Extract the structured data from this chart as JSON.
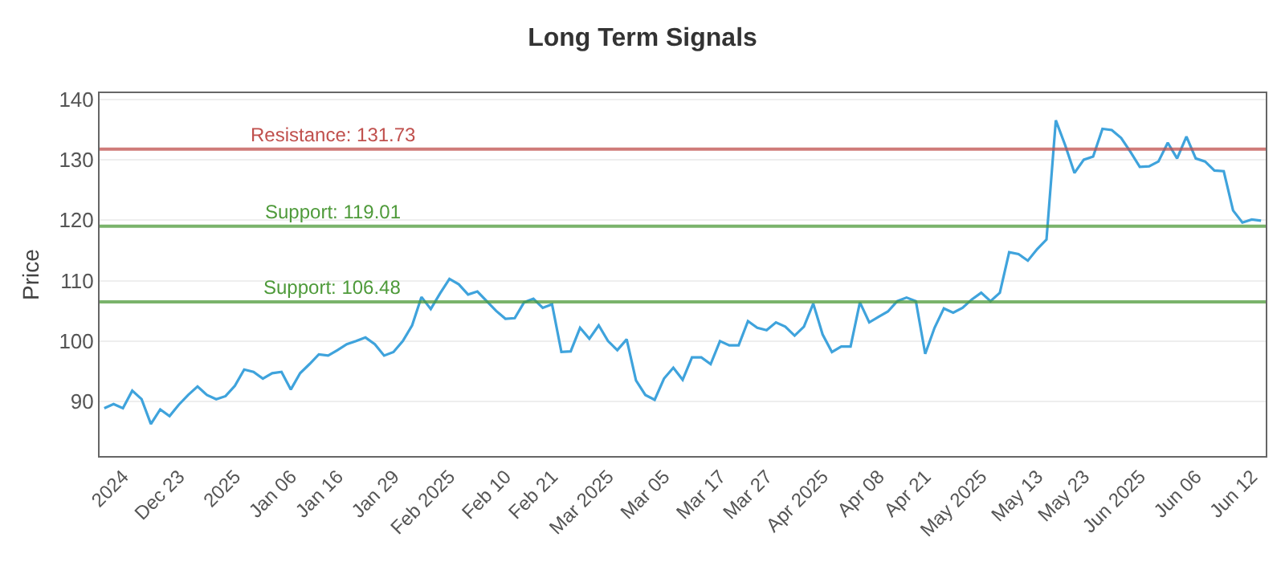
{
  "chart_data": {
    "type": "line",
    "title": "Long Term Signals",
    "ylabel": "Price",
    "categories": [
      null,
      null,
      "2024",
      null,
      null,
      null,
      null,
      null,
      "Dec 23",
      null,
      null,
      null,
      null,
      null,
      "2025",
      null,
      null,
      null,
      null,
      null,
      "Jan 06",
      null,
      null,
      null,
      null,
      "Jan 16",
      null,
      null,
      null,
      null,
      null,
      "Jan 29",
      null,
      null,
      null,
      null,
      null,
      "Feb 2025",
      null,
      null,
      null,
      null,
      null,
      "Feb 10",
      null,
      null,
      null,
      null,
      "Feb 21",
      null,
      null,
      null,
      null,
      null,
      "Mar 2025",
      null,
      null,
      null,
      null,
      null,
      "Mar 05",
      null,
      null,
      null,
      null,
      null,
      "Mar 17",
      null,
      null,
      null,
      null,
      "Mar 27",
      null,
      null,
      null,
      null,
      null,
      "Apr 2025",
      null,
      null,
      null,
      null,
      null,
      "Apr 08",
      null,
      null,
      null,
      null,
      "Apr 21",
      null,
      null,
      null,
      null,
      null,
      "May 2025",
      null,
      null,
      null,
      null,
      null,
      "May 13",
      null,
      null,
      null,
      null,
      "May 23",
      null,
      null,
      null,
      null,
      null,
      "Jun 2025",
      null,
      null,
      null,
      null,
      null,
      "Jun 06",
      null,
      null,
      null,
      null,
      null,
      "Jun 12",
      null
    ],
    "series": [
      {
        "color": "#3fa3dc",
        "values": [
          88.9,
          89.6,
          88.9,
          91.8,
          90.4,
          86.3,
          88.7,
          87.6,
          89.5,
          91.1,
          92.5,
          91.1,
          90.4,
          90.9,
          92.6,
          95.3,
          94.9,
          93.8,
          94.7,
          94.9,
          92.0,
          94.7,
          96.2,
          97.8,
          97.6,
          98.5,
          99.5,
          100.0,
          100.6,
          99.5,
          97.6,
          98.2,
          100.0,
          102.6,
          107.3,
          105.3,
          107.9,
          110.3,
          109.4,
          107.7,
          108.2,
          106.6,
          105.0,
          103.7,
          103.8,
          106.4,
          107.0,
          105.5,
          106.1,
          98.2,
          98.3,
          102.2,
          100.4,
          102.6,
          100.0,
          98.5,
          100.3,
          93.5,
          91.1,
          90.3,
          93.8,
          95.6,
          93.6,
          97.3,
          97.3,
          96.2,
          100.0,
          99.3,
          99.3,
          103.3,
          102.2,
          101.8,
          103.1,
          102.4,
          100.9,
          102.4,
          106.2,
          101.1,
          98.2,
          99.1,
          99.1,
          106.4,
          103.1,
          104.0,
          104.9,
          106.6,
          107.2,
          106.6,
          97.9,
          102.2,
          105.4,
          104.7,
          105.5,
          106.9,
          108.0,
          106.6,
          108.0,
          114.7,
          114.4,
          113.3,
          115.2,
          116.8,
          136.5,
          132.4,
          127.8,
          130.0,
          130.5,
          135.1,
          134.9,
          133.6,
          131.3,
          128.8,
          128.9,
          129.7,
          132.8,
          130.2,
          133.8,
          130.2,
          129.7,
          128.2,
          128.1,
          121.6,
          119.6,
          120.1,
          119.9
        ]
      }
    ],
    "ylim": [
      81,
      141
    ],
    "yticks": [
      90,
      100,
      110,
      120,
      130,
      140
    ],
    "grid": "y",
    "marker": "none",
    "line_style": "solid",
    "ref_lines": [
      {
        "axis": "y",
        "value": 131.73,
        "label": "Resistance: 131.73",
        "color": "#c0504d"
      },
      {
        "axis": "y",
        "value": 119.01,
        "label": "Support: 119.01",
        "color": "#4e9a3a"
      },
      {
        "axis": "y",
        "value": 106.48,
        "label": "Support: 106.48",
        "color": "#4e9a3a"
      }
    ]
  }
}
